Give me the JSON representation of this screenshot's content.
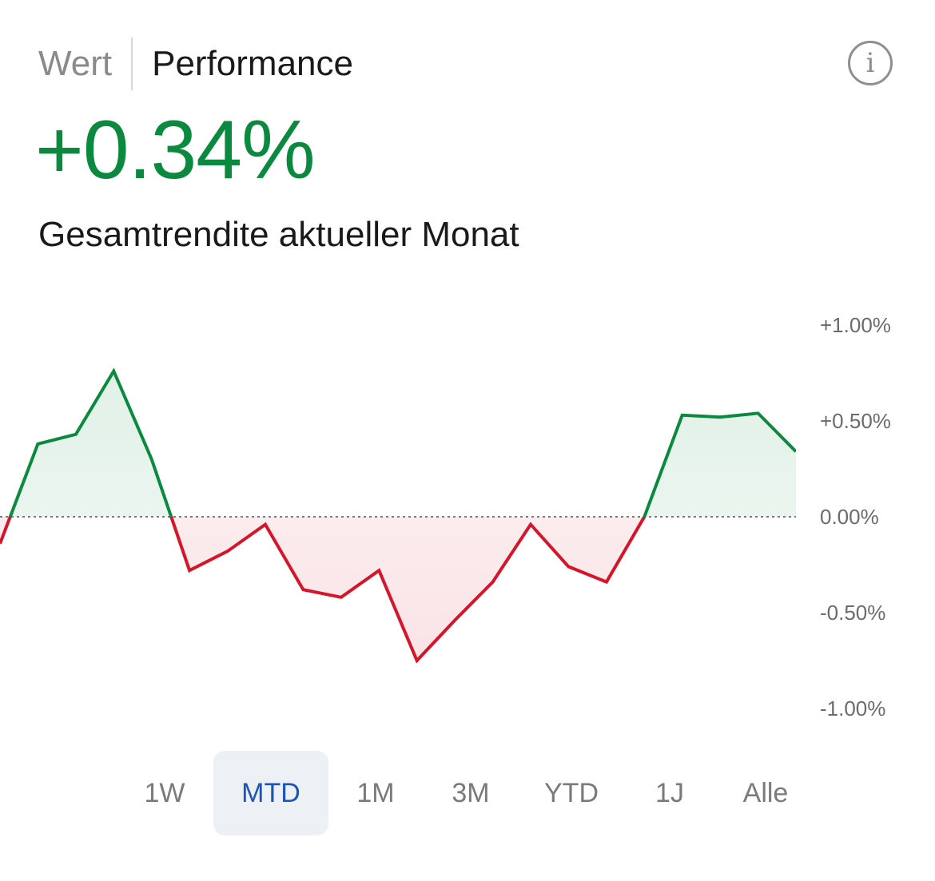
{
  "tabs": {
    "inactive_label": "Wert",
    "active_label": "Performance"
  },
  "info_icon": "info-icon",
  "headline": {
    "value": "+0.34%",
    "caption": "Gesamtrendite aktueller Monat"
  },
  "colors": {
    "positive": "#0b8a3f",
    "negative": "#d6152a",
    "selected_range": "#1a56b8"
  },
  "chart_data": {
    "type": "line",
    "y_ticks": [
      "+1.00%",
      "+0.50%",
      "0.00%",
      "-0.50%",
      "-1.00%"
    ],
    "ylim": [
      -1.0,
      1.0
    ],
    "baseline": 0,
    "y_axis_position": "right",
    "series": [
      {
        "values": [
          -0.14,
          0.38,
          0.43,
          0.76,
          0.3,
          -0.28,
          -0.18,
          -0.04,
          -0.38,
          -0.42,
          -0.28,
          -0.75,
          -0.54,
          -0.34,
          -0.04,
          -0.26,
          -0.34,
          0.0,
          0.53,
          0.52,
          0.54,
          0.34
        ]
      }
    ]
  },
  "ranges": {
    "selected": "MTD",
    "items": [
      "1W",
      "MTD",
      "1M",
      "3M",
      "YTD",
      "1J",
      "Alle"
    ]
  }
}
